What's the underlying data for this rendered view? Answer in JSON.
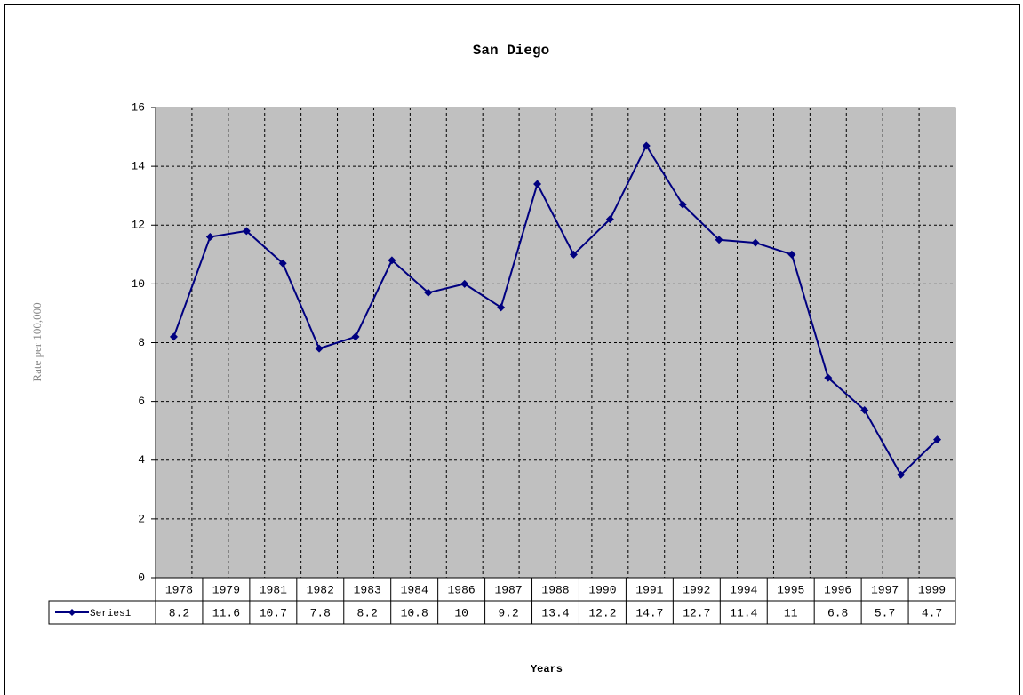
{
  "chart_data": {
    "type": "line",
    "title": "San Diego",
    "x_label": "Years",
    "y_label": "Rate per 100,000",
    "categories": [
      "1978",
      "1979",
      null,
      "1981",
      "1982",
      "1983",
      "1984",
      null,
      "1986",
      "1987",
      "1988",
      null,
      "1990",
      "1991",
      "1992",
      null,
      "1994",
      "1995",
      "1996",
      "1997",
      null,
      "1999"
    ],
    "series": [
      {
        "name": "Series1",
        "color": "#000080",
        "values": [
          8.2,
          11.6,
          11.8,
          10.7,
          7.8,
          8.2,
          10.8,
          9.7,
          10,
          9.2,
          13.4,
          11,
          12.2,
          14.7,
          12.7,
          11.5,
          11.4,
          11,
          6.8,
          5.7,
          3.5,
          4.7
        ]
      }
    ],
    "ylim": [
      0,
      16
    ],
    "yticks": [
      0,
      2,
      4,
      6,
      8,
      10,
      12,
      14,
      16
    ],
    "grid": true
  }
}
